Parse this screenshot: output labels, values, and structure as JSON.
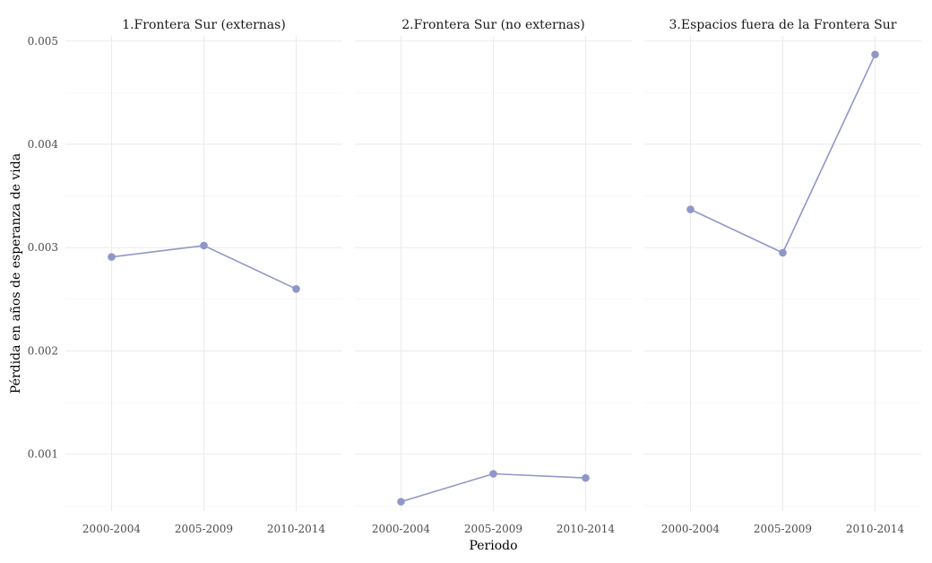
{
  "chart_data": {
    "type": "line",
    "xlabel": "Periodo",
    "ylabel": "Pérdida en años de esperanza de vida",
    "ylim": [
      0.00045,
      0.00505
    ],
    "y_ticks": [
      "0.001",
      "0.002",
      "0.003",
      "0.004",
      "0.005"
    ],
    "grid": true,
    "categories": [
      "2000-2004",
      "2005-2009",
      "2010-2014"
    ],
    "color": "#8f97c9",
    "panels": [
      {
        "title": "1.Frontera Sur (externas)",
        "values": [
          0.00291,
          0.00302,
          0.0026
        ]
      },
      {
        "title": "2.Frontera Sur (no externas)",
        "values": [
          0.00054,
          0.00081,
          0.00077
        ]
      },
      {
        "title": "3.Espacios fuera de la Frontera Sur",
        "values": [
          0.00337,
          0.00295,
          0.00487
        ]
      }
    ]
  }
}
